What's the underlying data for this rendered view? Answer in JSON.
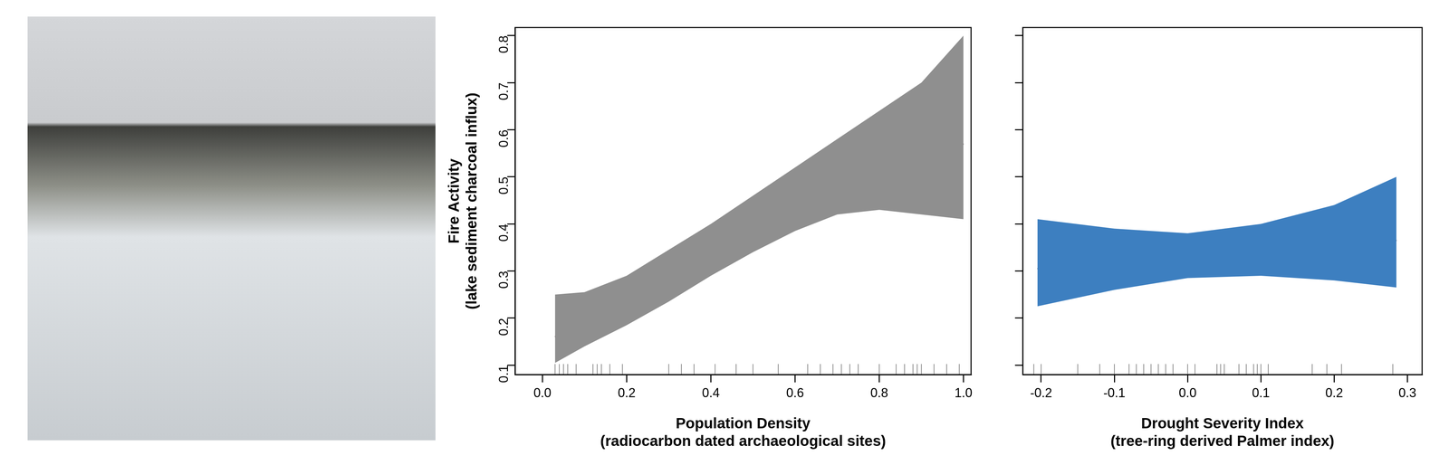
{
  "chart_data": [
    {
      "type": "line",
      "x_label": [
        "Population Density",
        "(radiocarbon dated archaeological sites)"
      ],
      "y_label": [
        "Fire Activity",
        "(lake sediment charcoal influx)"
      ],
      "color": "#8f8f8f",
      "x": [
        0.03,
        0.1,
        0.2,
        0.3,
        0.4,
        0.5,
        0.6,
        0.7,
        0.8,
        0.9,
        1.0
      ],
      "values": [
        0.16,
        0.19,
        0.235,
        0.29,
        0.345,
        0.4,
        0.45,
        0.49,
        0.525,
        0.55,
        0.57
      ],
      "lower": [
        0.105,
        0.14,
        0.185,
        0.235,
        0.29,
        0.34,
        0.385,
        0.42,
        0.43,
        0.42,
        0.41
      ],
      "upper": [
        0.25,
        0.255,
        0.29,
        0.345,
        0.4,
        0.46,
        0.52,
        0.58,
        0.64,
        0.7,
        0.8
      ],
      "rug": [
        0.03,
        0.04,
        0.05,
        0.06,
        0.08,
        0.12,
        0.13,
        0.14,
        0.16,
        0.19,
        0.3,
        0.33,
        0.36,
        0.41,
        0.46,
        0.5,
        0.56,
        0.63,
        0.66,
        0.69,
        0.71,
        0.73,
        0.75,
        0.8,
        0.84,
        0.86,
        0.88,
        0.89,
        0.9,
        0.93,
        0.96,
        0.99
      ],
      "xlim": [
        -0.065,
        1.018
      ],
      "xticks": [
        {
          "value": 0,
          "label": "0.0"
        },
        0.2,
        0.4,
        0.6,
        0.8,
        {
          "value": 1,
          "label": "1.0"
        }
      ],
      "ylim": [
        0.08,
        0.817
      ],
      "yticks": [
        0.1,
        0.2,
        0.3,
        0.4,
        0.5,
        0.6,
        0.7,
        0.8
      ],
      "grid": false
    },
    {
      "type": "line",
      "x_label": [
        "Drought Severity Index",
        "(tree-ring derived Palmer index)"
      ],
      "color": "#3d7fc0",
      "x": [
        -0.205,
        -0.1,
        0,
        0.1,
        0.2,
        0.285
      ],
      "values": [
        0.305,
        0.317,
        0.33,
        0.342,
        0.355,
        0.365
      ],
      "lower": [
        0.225,
        0.26,
        0.285,
        0.29,
        0.28,
        0.265
      ],
      "upper": [
        0.41,
        0.39,
        0.38,
        0.4,
        0.44,
        0.5
      ],
      "rug": [
        -0.21,
        -0.2,
        -0.15,
        -0.12,
        -0.1,
        -0.08,
        -0.07,
        -0.06,
        -0.05,
        -0.04,
        -0.03,
        -0.02,
        0,
        0.01,
        0.04,
        0.045,
        0.05,
        0.07,
        0.08,
        0.09,
        0.095,
        0.1,
        0.11,
        0.17,
        0.19,
        0.21,
        0.28
      ],
      "xlim": [
        -0.225,
        0.32
      ],
      "xticks": [
        -0.2,
        -0.1,
        {
          "value": 0,
          "label": "0.0"
        },
        0.1,
        0.2,
        0.3
      ],
      "ylim": [
        0.08,
        0.817
      ],
      "yticks": [
        0.1,
        0.2,
        0.3,
        0.4,
        0.5,
        0.6,
        0.7,
        0.8
      ],
      "tick_labels": "x",
      "grid": false
    }
  ]
}
